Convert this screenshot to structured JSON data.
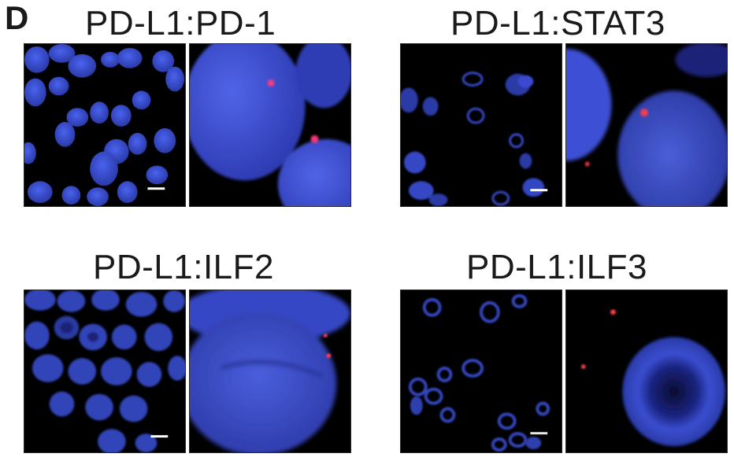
{
  "panel_label": "D",
  "groups": [
    {
      "title": "PD-L1:PD-1",
      "scale_bar_color": "#ffffff"
    },
    {
      "title": "PD-L1:STAT3",
      "scale_bar_color": "#ffffff"
    },
    {
      "title": "PD-L1:ILF2",
      "scale_bar_color": "#ffffff"
    },
    {
      "title": "PD-L1:ILF3",
      "scale_bar_color": "#ffffff"
    }
  ],
  "colors": {
    "nucleus_blue": "#3a4fd6",
    "nucleus_dark": "#1f2a8a",
    "pla_signal_red": "#ff3b4a",
    "background": "#000000"
  }
}
